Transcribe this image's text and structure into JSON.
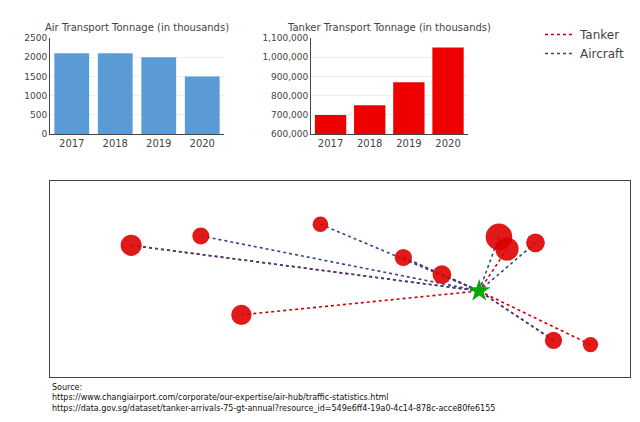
{
  "chart_data": [
    {
      "type": "bar",
      "title": "Air Transport Tonnage (in thousands)",
      "categories": [
        "2017",
        "2018",
        "2019",
        "2020"
      ],
      "values": [
        2100,
        2100,
        2000,
        1500
      ],
      "color": "#5b9bd5",
      "ylim": [
        0,
        2500
      ],
      "yticks": [
        0,
        500,
        1000,
        1500,
        2000,
        2500
      ],
      "grid": true
    },
    {
      "type": "bar",
      "title": "Tanker Transport Tonnage (in thousands)",
      "categories": [
        "2017",
        "2018",
        "2019",
        "2020"
      ],
      "values": [
        700000,
        750000,
        870000,
        1050000
      ],
      "color": "#ee0000",
      "ylim": [
        600000,
        1100000
      ],
      "yticks": [
        {
          "value": 600000,
          "label": "600,000"
        },
        {
          "value": 700000,
          "label": "700,000"
        },
        {
          "value": 800000,
          "label": "800,000"
        },
        {
          "value": 900000,
          "label": "900,000"
        },
        {
          "value": 1000000,
          "label": "1,000,000"
        },
        {
          "value": 1100000,
          "label": "1,100,000"
        }
      ],
      "grid": true
    },
    {
      "type": "map",
      "xlim": [
        -170,
        200
      ],
      "ylim": [
        -60,
        80
      ],
      "tick_labels": false,
      "grid": false,
      "legend": "top right",
      "series": [
        {
          "name": "Tanker",
          "type": "line",
          "line_style": "dotted",
          "color": "#cc0000",
          "x": [
            -118.2,
            -47.9,
            55.4,
            80.0,
            121.5,
            151.2,
            174.8
          ],
          "y": [
            33.9,
            -15.7,
            25.2,
            13.0,
            31.2,
            -33.9,
            -36.9
          ]
        },
        {
          "name": "Aircraft",
          "type": "line",
          "line_style": "dotted",
          "color": "#334488",
          "x": [
            -118.2,
            -73.8,
            2.5,
            55.4,
            116.4,
            139.7,
            151.2
          ],
          "y": [
            33.9,
            40.6,
            48.9,
            25.2,
            39.9,
            35.7,
            -33.9
          ]
        }
      ],
      "ports": {
        "marker": "circle",
        "color": "#dd0000",
        "x": [
          -118.2,
          -73.8,
          2.5,
          55.4,
          116.4,
          139.7,
          151.2,
          -47.9,
          80.0,
          121.5,
          174.8
        ],
        "y": [
          33.9,
          40.6,
          48.9,
          25.2,
          39.9,
          35.7,
          -33.9,
          -15.7,
          13.0,
          31.2,
          -36.9
        ],
        "sizes": [
          700,
          450,
          380,
          460,
          1100,
          550,
          460,
          650,
          550,
          850,
          370
        ]
      },
      "hub": {
        "marker": "star",
        "color": "#00aa00",
        "x": 103.8,
        "y": 1.35
      },
      "annotations": [
        "Source:\nhttps://www.changiairport.com/corporate/our-expertise/air-hub/traffic-statistics.html\nhttps://data.gov.sg/dataset/tanker-arrivals-75-gt-annual?resource_id=549e6ff4-19a0-4c14-878c-acce80fe6155"
      ]
    }
  ]
}
